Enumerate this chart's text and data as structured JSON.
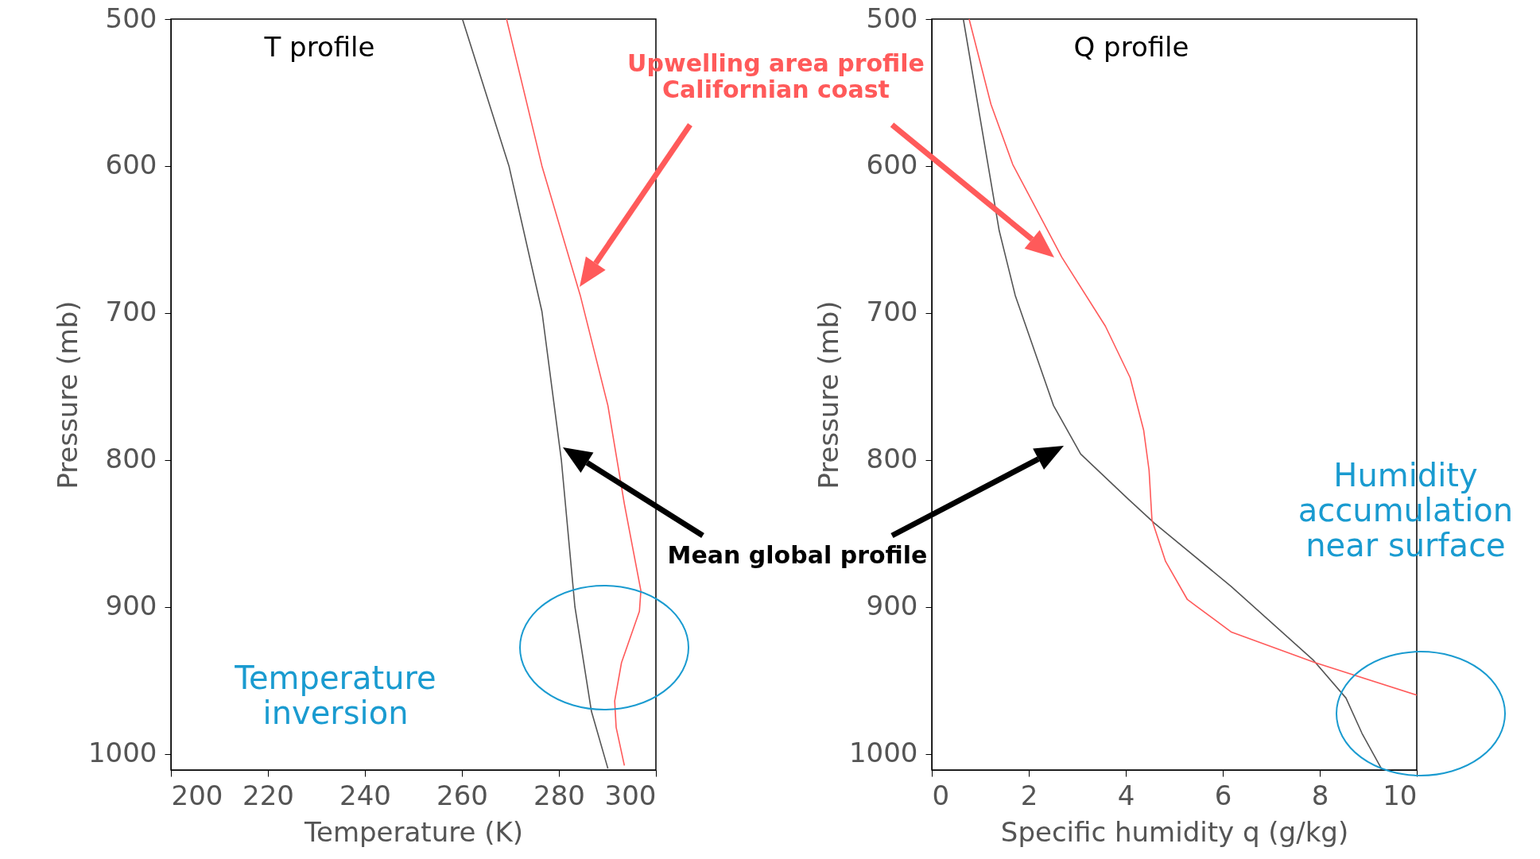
{
  "chart_data": [
    {
      "type": "line",
      "title": "T profile",
      "xlabel": "Temperature (K)",
      "ylabel": "Pressure (mb)",
      "xlim": [
        200,
        300
      ],
      "xticks": [
        200,
        220,
        240,
        260,
        280,
        300
      ],
      "ylim": [
        1011,
        500
      ],
      "yticks": [
        500,
        600,
        700,
        800,
        900,
        1000
      ],
      "annotations": [
        "Temperature inversion"
      ],
      "series": [
        {
          "name": "Mean global profile",
          "color": "#555555",
          "x": [
            260.1,
            269.7,
            276.5,
            280.5,
            283.3,
            286.7,
            290.1
          ],
          "values": [
            500,
            600,
            699,
            800,
            900,
            971,
            1010
          ]
        },
        {
          "name": "Upwelling area profile Californian coast",
          "color": "#ff5a5a",
          "x": [
            269.2,
            276.5,
            284.4,
            290.1,
            293.5,
            296.9,
            296.6,
            292.9,
            291.5,
            291.8,
            293.5
          ],
          "values": [
            500,
            600,
            688,
            763,
            830,
            889,
            903,
            938,
            964,
            982,
            1008
          ]
        }
      ]
    },
    {
      "type": "line",
      "title": "Q profile",
      "xlabel": "Specific humidity q (g/kg)",
      "ylabel": "Pressure (mb)",
      "xlim": [
        0,
        10
      ],
      "xticks": [
        0,
        2,
        4,
        6,
        8,
        10
      ],
      "ylim": [
        1011,
        500
      ],
      "yticks": [
        500,
        600,
        700,
        800,
        900,
        1000
      ],
      "annotations": [
        "Humidity accumulation near surface"
      ],
      "series": [
        {
          "color": "#555555",
          "x": [
            0.65,
            1.39,
            1.72,
            2.51,
            3.07,
            4.03,
            4.59,
            6.17,
            7.86,
            8.54,
            8.87,
            9.27
          ],
          "values": [
            500,
            644,
            688,
            763,
            796,
            826,
            843,
            886,
            936,
            962,
            986,
            1010
          ]
        },
        {
          "color": "#ff5a5a",
          "x": [
            0.77,
            1.22,
            1.67,
            2.68,
            3.58,
            4.09,
            4.37,
            4.48,
            4.54,
            4.82,
            5.27,
            6.17,
            7.91,
            10
          ],
          "values": [
            500,
            558,
            599,
            662,
            709,
            744,
            780,
            807,
            841,
            869,
            895,
            917,
            938,
            960
          ]
        }
      ]
    }
  ]
}
